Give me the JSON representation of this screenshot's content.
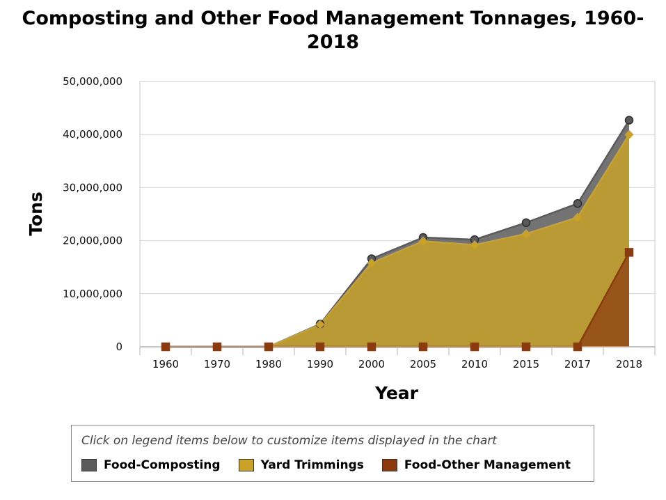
{
  "chart_data": {
    "type": "area",
    "title_lines": [
      "Composting and Other Food Management Tonnages, 1960-",
      "2018"
    ],
    "xlabel": "Year",
    "ylabel": "Tons",
    "categories": [
      "1960",
      "1970",
      "1980",
      "1990",
      "2000",
      "2005",
      "2010",
      "2015",
      "2017",
      "2018"
    ],
    "y_tick_labels": [
      "0",
      "10,000,000",
      "20,000,000",
      "30,000,000",
      "40,000,000",
      "50,000,000"
    ],
    "y_ticks": [
      0,
      10000000,
      20000000,
      30000000,
      40000000,
      50000000
    ],
    "ylim": [
      0,
      50000000
    ],
    "grid": true,
    "stacked": false,
    "series": [
      {
        "name": "Food-Composting",
        "color": "#5a5a5a",
        "marker": "circle",
        "values": [
          0,
          0,
          0,
          4300000,
          16600000,
          20600000,
          20200000,
          23400000,
          27000000,
          42700000
        ]
      },
      {
        "name": "Yard Trimmings",
        "color": "#c9a227",
        "marker": "diamond",
        "values": [
          0,
          0,
          0,
          4200000,
          15800000,
          19900000,
          19200000,
          21300000,
          24400000,
          40000000
        ]
      },
      {
        "name": "Food-Other Management",
        "color": "#8b3a10",
        "marker": "square",
        "values": [
          0,
          0,
          0,
          0,
          0,
          0,
          0,
          0,
          0,
          17800000
        ]
      }
    ],
    "legend": {
      "placement": "bottom",
      "hint": "Click on legend items below to customize items displayed in the chart"
    }
  }
}
